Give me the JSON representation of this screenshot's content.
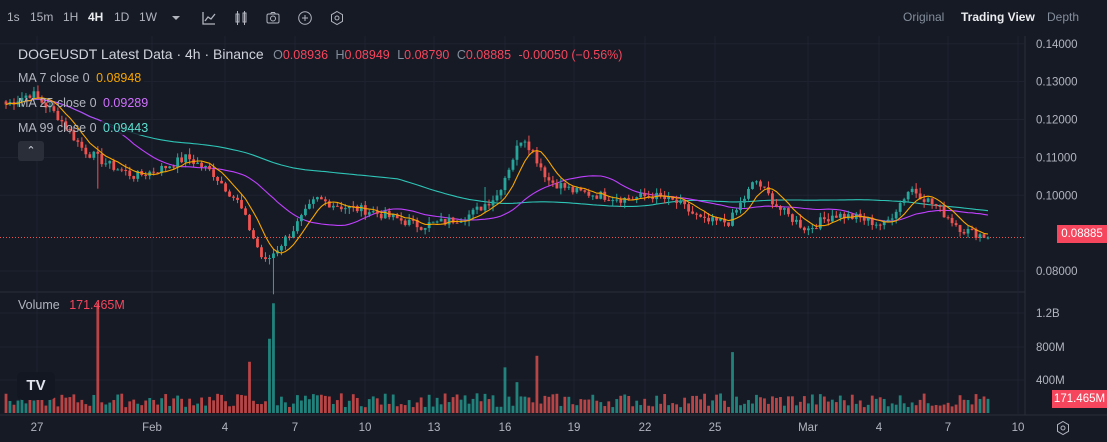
{
  "toolbar": {
    "intervals": [
      "1s",
      "15m",
      "1H",
      "4H",
      "1D",
      "1W"
    ],
    "active_interval": "4H",
    "tools": [
      "chevron-down-icon",
      "indicators-icon",
      "candle-type-icon",
      "camera-icon",
      "add-icon",
      "settings-hex-icon"
    ]
  },
  "views": {
    "original": "Original",
    "trading_view": "Trading View",
    "depth": "Depth"
  },
  "legend": {
    "symbol": "DOGEUSDT Latest Data · 4h · Binance",
    "o_label": "O",
    "o": "0.08936",
    "h_label": "H",
    "h": "0.08949",
    "l_label": "L",
    "l": "0.08790",
    "c_label": "C",
    "c": "0.08885",
    "change": "-0.00050 (−0.56%)",
    "ma7_label": "MA 7 close 0",
    "ma7": "0.08948",
    "ma25_label": "MA 25 close 0",
    "ma25": "0.09289",
    "ma99_label": "MA 99 close 0",
    "ma99": "0.09443",
    "collapse": "⌃"
  },
  "volume_legend": {
    "label": "Volume",
    "value": "171.465M"
  },
  "last_price": "0.08885",
  "last_volume": "171.465M",
  "logo": "TV",
  "colors": {
    "up": "#26a69a",
    "down": "#ef5350",
    "ma7": "#f7a600",
    "ma25": "#c040ff",
    "ma99": "#2ec4b6",
    "bg": "#161a25"
  },
  "chart_data": {
    "type": "candlestick",
    "price_axis": {
      "ticks": [
        "0.14000",
        "0.13000",
        "0.12000",
        "0.11000",
        "0.10000",
        "0.08000"
      ],
      "range": [
        0.08,
        0.14
      ]
    },
    "volume_axis": {
      "ticks": [
        "1.2B",
        "800M",
        "400M"
      ]
    },
    "x_ticks": [
      "27",
      "Feb",
      "4",
      "7",
      "10",
      "13",
      "16",
      "19",
      "22",
      "25",
      "Mar",
      "4",
      "7",
      "10"
    ],
    "close_anchors": [
      0.124,
      0.127,
      0.121,
      0.112,
      0.108,
      0.105,
      0.107,
      0.11,
      0.106,
      0.098,
      0.082,
      0.09,
      0.099,
      0.097,
      0.096,
      0.094,
      0.092,
      0.093,
      0.095,
      0.1,
      0.116,
      0.104,
      0.101,
      0.1,
      0.099,
      0.1,
      0.098,
      0.093,
      0.093,
      0.104,
      0.096,
      0.091,
      0.095,
      0.094,
      0.092,
      0.102,
      0.097,
      0.091,
      0.089
    ],
    "ma7_last": 0.08948,
    "ma25_last": 0.09289,
    "ma99_last": 0.09443,
    "volume_last": "171.465M"
  }
}
